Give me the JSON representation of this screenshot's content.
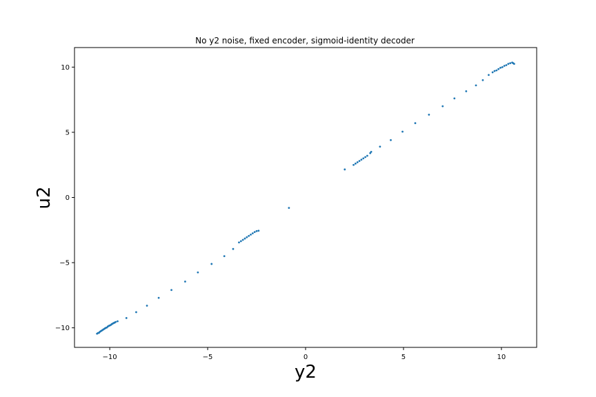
{
  "chart_data": {
    "type": "scatter",
    "title": "No y2 noise, fixed encoder, sigmoid-identity decoder",
    "xlabel": "y2",
    "ylabel": "u2",
    "xlim": [
      -11.8,
      11.8
    ],
    "ylim": [
      -11.5,
      11.5
    ],
    "xticks": [
      -10,
      -5,
      0,
      5,
      10
    ],
    "yticks": [
      -10,
      -5,
      0,
      5,
      10
    ],
    "xtick_labels": [
      "−10",
      "−5",
      "0",
      "5",
      "10"
    ],
    "ytick_labels": [
      "−10",
      "−5",
      "0",
      "5",
      "10"
    ],
    "grid": false,
    "marker_color": "#1f77b4",
    "series": [
      {
        "x": [
          -10.65,
          -10.6,
          -10.55,
          -10.5,
          -10.45,
          -10.4,
          -10.35,
          -10.3,
          -10.25,
          -10.2,
          -10.15,
          -10.1,
          -10.05,
          -10.0,
          -9.95,
          -9.9,
          -9.85,
          -9.8,
          -9.75,
          -9.7,
          -9.6,
          -9.15,
          -8.65,
          -8.1,
          -7.5,
          -6.85,
          -6.15,
          -5.5,
          -4.8,
          -4.15,
          -3.7,
          -3.4,
          -3.3,
          -3.2,
          -3.1,
          -3.0,
          -2.9,
          -2.8,
          -2.7,
          -2.6,
          -2.5,
          -2.4,
          -0.85,
          2.0,
          2.45,
          2.55,
          2.65,
          2.75,
          2.85,
          2.95,
          3.05,
          3.15,
          3.3,
          3.35,
          3.8,
          4.35,
          4.95,
          5.6,
          6.3,
          7.0,
          7.6,
          8.2,
          8.7,
          9.05,
          9.35,
          9.55,
          9.65,
          9.75,
          9.85,
          9.95,
          10.05,
          10.15,
          10.25,
          10.35,
          10.45,
          10.55,
          10.6,
          10.65
        ],
        "y": [
          -10.45,
          -10.4,
          -10.38,
          -10.3,
          -10.25,
          -10.2,
          -10.15,
          -10.1,
          -10.05,
          -10.0,
          -9.98,
          -9.9,
          -9.85,
          -9.82,
          -9.78,
          -9.72,
          -9.68,
          -9.63,
          -9.6,
          -9.55,
          -9.5,
          -9.25,
          -8.8,
          -8.3,
          -7.7,
          -7.1,
          -6.45,
          -5.75,
          -5.1,
          -4.5,
          -3.95,
          -3.45,
          -3.35,
          -3.25,
          -3.15,
          -3.05,
          -2.95,
          -2.85,
          -2.75,
          -2.65,
          -2.58,
          -2.55,
          -0.8,
          2.15,
          2.5,
          2.6,
          2.7,
          2.8,
          2.9,
          3.0,
          3.1,
          3.2,
          3.4,
          3.5,
          3.9,
          4.4,
          5.05,
          5.7,
          6.35,
          7.0,
          7.6,
          8.15,
          8.6,
          9.0,
          9.4,
          9.6,
          9.7,
          9.75,
          9.85,
          9.95,
          10.0,
          10.1,
          10.15,
          10.25,
          10.3,
          10.35,
          10.3,
          10.25
        ]
      }
    ]
  }
}
